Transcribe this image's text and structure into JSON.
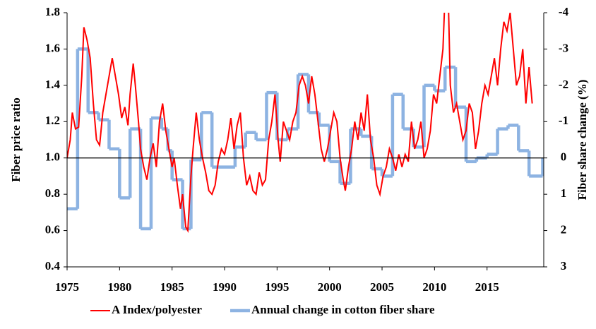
{
  "chart_data": {
    "type": "line",
    "y_label": "Fiber price ratio",
    "y2_label": "Fiber share change (%)",
    "xlim": [
      1975,
      2020.4
    ],
    "xticks": [
      1975,
      1980,
      1985,
      1990,
      1995,
      2000,
      2005,
      2010,
      2015
    ],
    "ylim": [
      0.4,
      1.8
    ],
    "yticks": [
      0.4,
      0.6,
      0.8,
      {
        "value": 1,
        "label": "1.0"
      },
      1.2,
      1.4,
      1.6,
      1.8
    ],
    "y2lim": [
      3,
      -4
    ],
    "y2ticks": [
      -4,
      -3,
      -2,
      -1,
      0,
      1,
      2,
      3
    ],
    "reference_line": 1,
    "legend": "bottom",
    "series": [
      {
        "name": "A Index/polyester",
        "color": "#ff0000",
        "style": "line",
        "x": [
          1975.0,
          1975.3,
          1975.5,
          1975.8,
          1976.1,
          1976.4,
          1976.6,
          1976.9,
          1977.2,
          1977.5,
          1977.8,
          1978.1,
          1978.4,
          1978.7,
          1979.0,
          1979.3,
          1979.6,
          1979.9,
          1980.2,
          1980.5,
          1980.8,
          1981.0,
          1981.3,
          1981.5,
          1981.8,
          1982.0,
          1982.3,
          1982.6,
          1982.9,
          1983.2,
          1983.5,
          1983.8,
          1984.1,
          1984.4,
          1984.7,
          1985.0,
          1985.2,
          1985.5,
          1985.8,
          1986.0,
          1986.3,
          1986.5,
          1986.8,
          1987.0,
          1987.3,
          1987.6,
          1987.9,
          1988.2,
          1988.5,
          1988.8,
          1989.1,
          1989.4,
          1989.7,
          1990.0,
          1990.3,
          1990.6,
          1990.9,
          1991.2,
          1991.5,
          1991.8,
          1992.1,
          1992.4,
          1992.7,
          1993.0,
          1993.3,
          1993.6,
          1993.9,
          1994.2,
          1994.5,
          1994.8,
          1995.1,
          1995.3,
          1995.6,
          1995.9,
          1996.2,
          1996.5,
          1996.8,
          1997.1,
          1997.4,
          1997.7,
          1998.0,
          1998.3,
          1998.6,
          1998.9,
          1999.2,
          1999.5,
          1999.8,
          2000.1,
          2000.4,
          2000.7,
          2001.0,
          2001.3,
          2001.5,
          2001.8,
          2002.1,
          2002.4,
          2002.7,
          2003.0,
          2003.3,
          2003.6,
          2003.9,
          2004.2,
          2004.5,
          2004.8,
          2005.1,
          2005.4,
          2005.7,
          2006.0,
          2006.3,
          2006.6,
          2006.9,
          2007.2,
          2007.5,
          2007.8,
          2008.1,
          2008.4,
          2008.7,
          2009.0,
          2009.3,
          2009.6,
          2009.9,
          2010.2,
          2010.5,
          2010.8,
          2011.0,
          2011.3,
          2011.5,
          2011.8,
          2012.1,
          2012.4,
          2012.7,
          2013.0,
          2013.3,
          2013.6,
          2013.9,
          2014.2,
          2014.5,
          2014.8,
          2015.1,
          2015.4,
          2015.7,
          2016.0,
          2016.3,
          2016.6,
          2016.9,
          2017.2,
          2017.5,
          2017.8,
          2018.1,
          2018.4,
          2018.7,
          2019.0,
          2019.3
        ],
        "values": [
          1.0,
          1.1,
          1.25,
          1.16,
          1.17,
          1.45,
          1.72,
          1.65,
          1.55,
          1.3,
          1.1,
          1.07,
          1.25,
          1.35,
          1.45,
          1.55,
          1.45,
          1.35,
          1.22,
          1.28,
          1.18,
          1.35,
          1.52,
          1.4,
          1.2,
          1.05,
          0.95,
          0.88,
          1.0,
          1.08,
          0.95,
          1.2,
          1.3,
          1.15,
          1.05,
          0.95,
          1.0,
          0.85,
          0.72,
          0.8,
          0.62,
          0.6,
          0.9,
          1.05,
          1.25,
          1.1,
          1.0,
          0.92,
          0.82,
          0.8,
          0.85,
          0.98,
          1.05,
          1.02,
          1.1,
          1.22,
          1.05,
          1.18,
          1.25,
          1.0,
          0.85,
          0.9,
          0.82,
          0.8,
          0.92,
          0.85,
          0.88,
          1.1,
          1.2,
          1.35,
          1.1,
          0.98,
          1.2,
          1.15,
          1.1,
          1.2,
          1.25,
          1.4,
          1.45,
          1.4,
          1.3,
          1.45,
          1.35,
          1.2,
          1.05,
          0.98,
          1.05,
          1.15,
          1.25,
          1.2,
          1.0,
          0.88,
          0.82,
          0.95,
          1.05,
          1.2,
          1.1,
          1.25,
          1.15,
          1.35,
          1.1,
          1.0,
          0.85,
          0.8,
          0.9,
          0.95,
          1.05,
          1.0,
          0.93,
          1.02,
          0.95,
          1.02,
          0.98,
          1.2,
          1.05,
          1.1,
          1.2,
          1.0,
          1.05,
          1.15,
          1.35,
          1.3,
          1.45,
          1.6,
          1.9,
          1.9,
          1.4,
          1.25,
          1.3,
          1.2,
          1.1,
          1.15,
          1.3,
          1.25,
          1.05,
          1.15,
          1.3,
          1.4,
          1.35,
          1.45,
          1.55,
          1.4,
          1.6,
          1.75,
          1.7,
          1.8,
          1.6,
          1.4,
          1.45,
          1.6,
          1.3,
          1.5,
          1.3
        ]
      },
      {
        "name": "Annual change in cotton fiber share",
        "color": "#8db3e2",
        "style": "step",
        "axis": "y2",
        "x": [
          1975,
          1976,
          1977,
          1978,
          1979,
          1980,
          1981,
          1982,
          1983,
          1984,
          1984.6,
          1985,
          1986,
          1986.8,
          1987.8,
          1988.8,
          1991,
          1992,
          1993,
          1994,
          1995,
          1996,
          1997,
          1998,
          1999,
          2000,
          2001,
          2002,
          2003,
          2004,
          2005,
          2006,
          2007,
          2008,
          2009,
          2010,
          2011,
          2012,
          2013,
          2014,
          2015,
          2016,
          2017,
          2018,
          2019,
          2020.3
        ],
        "values": [
          1.4,
          -3.0,
          -1.25,
          -1.05,
          -0.25,
          1.1,
          -0.8,
          1.95,
          -1.1,
          -0.8,
          -0.2,
          0.6,
          1.95,
          0.05,
          -1.25,
          0.25,
          -0.3,
          -0.7,
          -0.5,
          -1.8,
          -0.5,
          -0.8,
          -2.3,
          -1.25,
          -0.9,
          0.1,
          0.7,
          -0.8,
          -0.6,
          0.3,
          0.5,
          -1.75,
          -0.8,
          -0.3,
          -2.0,
          -1.85,
          -2.5,
          -1.4,
          0.1,
          0,
          -0.1,
          -0.8,
          -0.9,
          -0.2,
          0.5,
          0
        ]
      }
    ]
  }
}
